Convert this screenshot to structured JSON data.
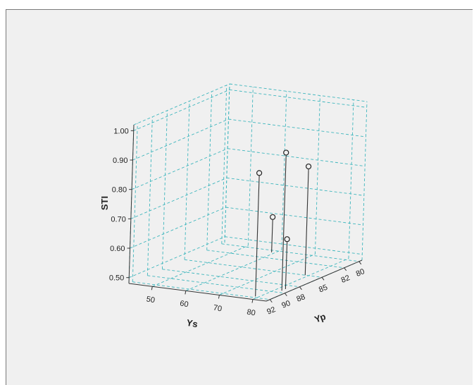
{
  "chart_data": {
    "type": "scatter",
    "variant": "3d-drop-line",
    "title": "",
    "xlabel": "Ys",
    "ylabel": "Yp",
    "zlabel": "STI",
    "x_ticks": [
      50,
      60,
      70,
      80
    ],
    "y_ticks": [
      92,
      90,
      88,
      85,
      82,
      80
    ],
    "z_ticks": [
      "0.50",
      "0.60",
      "0.70",
      "0.80",
      "0.90",
      "1.00"
    ],
    "xlim": [
      43,
      84
    ],
    "ylim": [
      92.5,
      79.6
    ],
    "zlim": [
      0.48,
      1.02
    ],
    "grid": true,
    "points": [
      {
        "x": 59,
        "y": 80.5,
        "z": 0.6
      },
      {
        "x": 79,
        "y": 91.7,
        "z": 0.9
      },
      {
        "x": 82,
        "y": 89.5,
        "z": 0.95
      },
      {
        "x": 82,
        "y": 89.0,
        "z": 0.65
      },
      {
        "x": 79,
        "y": 85.0,
        "z": 0.85
      }
    ]
  },
  "colors": {
    "background": "#f0f0f0",
    "grid": "#3fb6bd",
    "axis": "#333333",
    "marker_edge": "#222222"
  }
}
